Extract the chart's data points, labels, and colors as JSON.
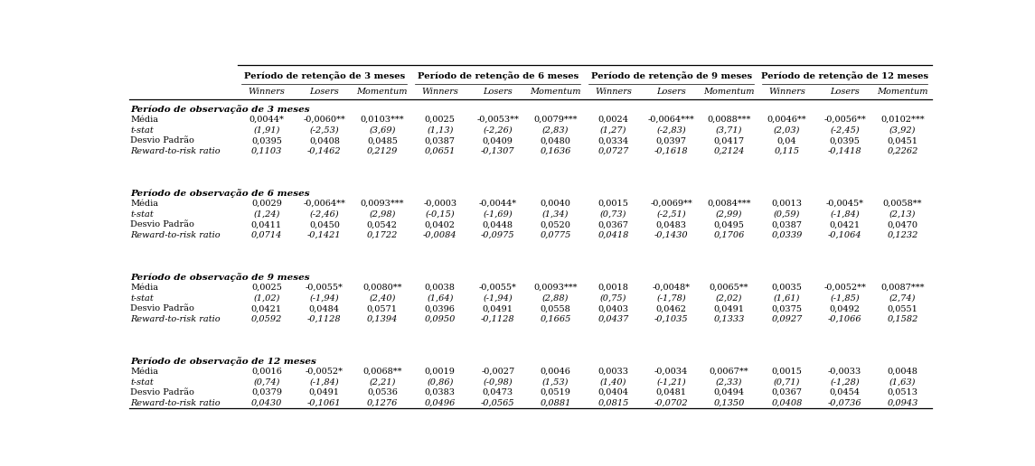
{
  "col_group_labels": [
    "Período de retenção de 3 meses",
    "Período de retenção de 6 meses",
    "Período de retenção de 9 meses",
    "Período de retenção de 12 meses"
  ],
  "sub_headers": [
    "Winners",
    "Losers",
    "Momentum"
  ],
  "sections": [
    {
      "title": "Período de observação de 3 meses",
      "rows": [
        [
          "Média",
          "0,0044*",
          "-0,0060**",
          "0,0103***",
          "0,0025",
          "-0,0053**",
          "0,0079***",
          "0,0024",
          "-0,0064***",
          "0,0088***",
          "0,0046**",
          "-0,0056**",
          "0,0102***"
        ],
        [
          "t-stat",
          "(1,91)",
          "(-2,53)",
          "(3,69)",
          "(1,13)",
          "(-2,26)",
          "(2,83)",
          "(1,27)",
          "(-2,83)",
          "(3,71)",
          "(2,03)",
          "(-2,45)",
          "(3,92)"
        ],
        [
          "Desvio Padrão",
          "0,0395",
          "0,0408",
          "0,0485",
          "0,0387",
          "0,0409",
          "0,0480",
          "0,0334",
          "0,0397",
          "0,0417",
          "0,04",
          "0,0395",
          "0,0451"
        ],
        [
          "Reward-to-risk ratio",
          "0,1103",
          "-0,1462",
          "0,2129",
          "0,0651",
          "-0,1307",
          "0,1636",
          "0,0727",
          "-0,1618",
          "0,2124",
          "0,115",
          "-0,1418",
          "0,2262"
        ]
      ],
      "row_italic": [
        false,
        true,
        false,
        true
      ]
    },
    {
      "title": "Período de observação de 6 meses",
      "rows": [
        [
          "Média",
          "0,0029",
          "-0,0064**",
          "0,0093***",
          "-0,0003",
          "-0,0044*",
          "0,0040",
          "0,0015",
          "-0,0069**",
          "0,0084***",
          "0,0013",
          "-0,0045*",
          "0,0058**"
        ],
        [
          "t-stat",
          "(1,24)",
          "(-2,46)",
          "(2,98)",
          "(-0,15)",
          "(-1,69)",
          "(1,34)",
          "(0,73)",
          "(-2,51)",
          "(2,99)",
          "(0,59)",
          "(-1,84)",
          "(2,13)"
        ],
        [
          "Desvio Padrão",
          "0,0411",
          "0,0450",
          "0,0542",
          "0,0402",
          "0,0448",
          "0,0520",
          "0,0367",
          "0,0483",
          "0,0495",
          "0,0387",
          "0,0421",
          "0,0470"
        ],
        [
          "Reward-to-risk ratio",
          "0,0714",
          "-0,1421",
          "0,1722",
          "-0,0084",
          "-0,0975",
          "0,0775",
          "0,0418",
          "-0,1430",
          "0,1706",
          "0,0339",
          "-0,1064",
          "0,1232"
        ]
      ],
      "row_italic": [
        false,
        true,
        false,
        true
      ]
    },
    {
      "title": "Período de observação de 9 meses",
      "rows": [
        [
          "Média",
          "0,0025",
          "-0,0055*",
          "0,0080**",
          "0,0038",
          "-0,0055*",
          "0,0093***",
          "0,0018",
          "-0,0048*",
          "0,0065**",
          "0,0035",
          "-0,0052**",
          "0,0087***"
        ],
        [
          "t-stat",
          "(1,02)",
          "(-1,94)",
          "(2,40)",
          "(1,64)",
          "(-1,94)",
          "(2,88)",
          "(0,75)",
          "(-1,78)",
          "(2,02)",
          "(1,61)",
          "(-1,85)",
          "(2,74)"
        ],
        [
          "Desvio Padrão",
          "0,0421",
          "0,0484",
          "0,0571",
          "0,0396",
          "0,0491",
          "0,0558",
          "0,0403",
          "0,0462",
          "0,0491",
          "0,0375",
          "0,0492",
          "0,0551"
        ],
        [
          "Reward-to-risk ratio",
          "0,0592",
          "-0,1128",
          "0,1394",
          "0,0950",
          "-0,1128",
          "0,1665",
          "0,0437",
          "-0,1035",
          "0,1333",
          "0,0927",
          "-0,1066",
          "0,1582"
        ]
      ],
      "row_italic": [
        false,
        true,
        false,
        true
      ]
    },
    {
      "title": "Período de observação de 12 meses",
      "rows": [
        [
          "Média",
          "0,0016",
          "-0,0052*",
          "0,0068**",
          "0,0019",
          "-0,0027",
          "0,0046",
          "0,0033",
          "-0,0034",
          "0,0067**",
          "0,0015",
          "-0,0033",
          "0,0048"
        ],
        [
          "t-stat",
          "(0,74)",
          "(-1,84)",
          "(2,21)",
          "(0,86)",
          "(-0,98)",
          "(1,53)",
          "(1,40)",
          "(-1,21)",
          "(2,33)",
          "(0,71)",
          "(-1,28)",
          "(1,63)"
        ],
        [
          "Desvio Padrão",
          "0,0379",
          "0,0491",
          "0,0536",
          "0,0383",
          "0,0473",
          "0,0519",
          "0,0404",
          "0,0481",
          "0,0494",
          "0,0367",
          "0,0454",
          "0,0513"
        ],
        [
          "Reward-to-risk ratio",
          "0,0430",
          "-0,1061",
          "0,1276",
          "0,0496",
          "-0,0565",
          "0,0881",
          "0,0815",
          "-0,0702",
          "0,1350",
          "0,0408",
          "-0,0736",
          "0,0943"
        ]
      ],
      "row_italic": [
        false,
        true,
        false,
        true
      ]
    }
  ],
  "figsize": [
    11.45,
    5.16
  ],
  "dpi": 100
}
